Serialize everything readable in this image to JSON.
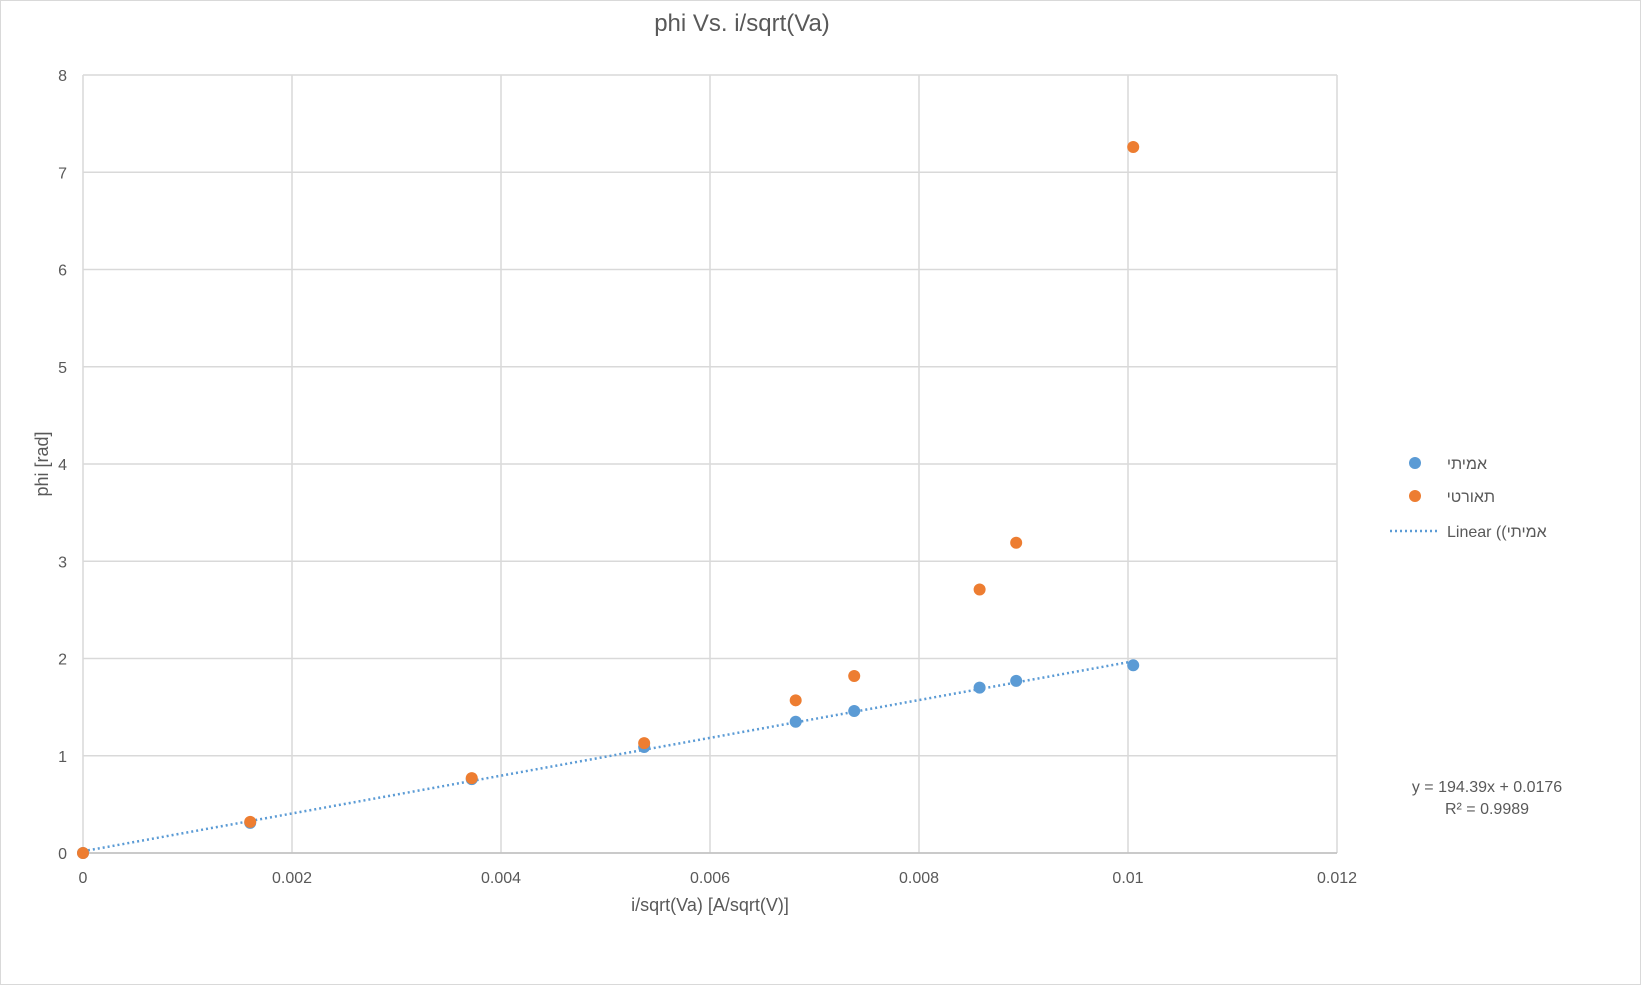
{
  "chart_data": {
    "type": "scatter",
    "title": "phi Vs. i/sqrt(Va)",
    "xlabel": "i/sqrt(Va) [A/sqrt(V)]",
    "ylabel": "phi [rad]",
    "xlim": [
      0,
      0.012
    ],
    "ylim": [
      0,
      8
    ],
    "x_ticks": [
      "0",
      "0.002",
      "0.004",
      "0.006",
      "0.008",
      "0.01",
      "0.012"
    ],
    "y_ticks": [
      "0",
      "1",
      "2",
      "3",
      "4",
      "5",
      "6",
      "7",
      "8"
    ],
    "grid": true,
    "legend_position": "right",
    "series": [
      {
        "name": "אמיתי",
        "color": "#5b9bd5",
        "points": [
          {
            "x": 0,
            "y": 0
          },
          {
            "x": 0.0016,
            "y": 0.31
          },
          {
            "x": 0.00372,
            "y": 0.76
          },
          {
            "x": 0.00537,
            "y": 1.09
          },
          {
            "x": 0.00682,
            "y": 1.35
          },
          {
            "x": 0.00738,
            "y": 1.46
          },
          {
            "x": 0.00858,
            "y": 1.7
          },
          {
            "x": 0.00893,
            "y": 1.77
          },
          {
            "x": 0.01005,
            "y": 1.93
          }
        ]
      },
      {
        "name": "תאורטי",
        "color": "#ed7d31",
        "points": [
          {
            "x": 0,
            "y": 0
          },
          {
            "x": 0.0016,
            "y": 0.32
          },
          {
            "x": 0.00372,
            "y": 0.77
          },
          {
            "x": 0.00537,
            "y": 1.13
          },
          {
            "x": 0.00682,
            "y": 1.57
          },
          {
            "x": 0.00738,
            "y": 1.82
          },
          {
            "x": 0.00858,
            "y": 2.71
          },
          {
            "x": 0.00893,
            "y": 3.19
          },
          {
            "x": 0.01005,
            "y": 7.26
          }
        ]
      }
    ],
    "trendline": {
      "name": "Linear ((אמיתי",
      "color": "#5b9bd5",
      "slope": 194.39,
      "intercept": 0.0176,
      "x_range": [
        0,
        0.01005
      ],
      "equation": "y = 194.39x + 0.0176",
      "r_squared": "R² = 0.9989"
    }
  }
}
